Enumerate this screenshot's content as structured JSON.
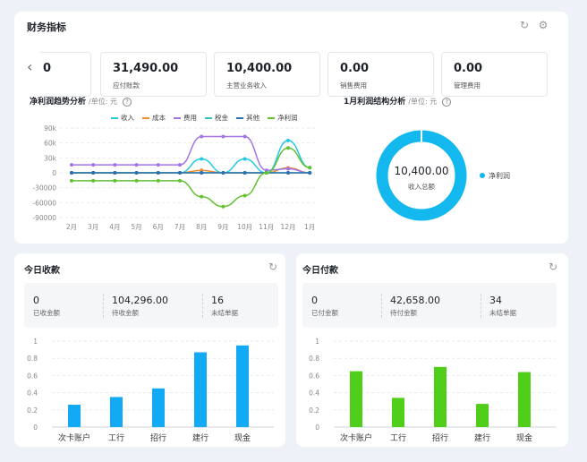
{
  "finance": {
    "title": "财务指标",
    "kpis": [
      {
        "value": "0",
        "label": ""
      },
      {
        "value": "31,490.00",
        "label": "应付账款"
      },
      {
        "value": "10,400.00",
        "label": "主营业务收入"
      },
      {
        "value": "0.00",
        "label": "销售费用"
      },
      {
        "value": "0.00",
        "label": "管理费用"
      }
    ],
    "trend": {
      "title": "净利润趋势分析",
      "unit": "/单位: 元"
    },
    "structure": {
      "title": "1月利润结构分析",
      "unit": "/单位: 元"
    },
    "donut": {
      "value": "10,400.00",
      "label": "收入总额",
      "legend": "净利润"
    }
  },
  "colors": {
    "income": "#24c8e8",
    "cost": "#f08c2e",
    "expense": "#a274e6",
    "tax": "#2ec4c4",
    "other": "#2d6fb0",
    "net": "#63c132",
    "blue_bar": "#12aaf5",
    "green_bar": "#4fcf1a"
  },
  "chart_data": [
    {
      "type": "line",
      "categories": [
        "2月",
        "3月",
        "4月",
        "5月",
        "6月",
        "7月",
        "8月",
        "9月",
        "10月",
        "11月",
        "12月",
        "1月"
      ],
      "yticks": [
        "90k",
        "60k",
        "30k",
        "0",
        "-30000",
        "-60000",
        "-90000"
      ],
      "ylim": [
        -90000,
        90000
      ],
      "series": [
        {
          "name": "收入",
          "values": [
            0,
            0,
            0,
            0,
            0,
            0,
            28000,
            0,
            28000,
            0,
            65000,
            10400
          ]
        },
        {
          "name": "成本",
          "values": [
            0,
            0,
            0,
            0,
            0,
            0,
            5000,
            0,
            0,
            0,
            10000,
            0
          ]
        },
        {
          "name": "费用",
          "values": [
            16000,
            16000,
            16000,
            16000,
            16000,
            16000,
            73000,
            73000,
            73000,
            5000,
            8000,
            0
          ]
        },
        {
          "name": "税金",
          "values": [
            0,
            0,
            0,
            0,
            0,
            0,
            0,
            0,
            0,
            0,
            0,
            0
          ]
        },
        {
          "name": "其他",
          "values": [
            0,
            0,
            0,
            0,
            0,
            0,
            0,
            0,
            0,
            0,
            0,
            0
          ]
        },
        {
          "name": "净利润",
          "values": [
            -16000,
            -16000,
            -16000,
            -16000,
            -16000,
            -16000,
            -48000,
            -68000,
            -46000,
            0,
            50000,
            10400
          ]
        }
      ],
      "grid": true,
      "legend": "top"
    },
    {
      "type": "pie",
      "categories": [
        "净利润"
      ],
      "values": [
        10400
      ]
    },
    {
      "type": "bar",
      "categories": [
        "次卡账户",
        "工行",
        "招行",
        "建行",
        "现金"
      ],
      "values": [
        0.26,
        0.35,
        0.45,
        0.87,
        0.95
      ],
      "yticks": [
        "1",
        "0.8",
        "0.6",
        "0.4",
        "0.2",
        "0"
      ],
      "ylim": [
        0,
        1
      ]
    },
    {
      "type": "bar",
      "categories": [
        "次卡账户",
        "工行",
        "招行",
        "建行",
        "现金"
      ],
      "values": [
        0.65,
        0.34,
        0.7,
        0.27,
        0.64
      ],
      "yticks": [
        "1",
        "0.8",
        "0.6",
        "0.4",
        "0.2",
        "0"
      ],
      "ylim": [
        0,
        1
      ]
    }
  ],
  "receipts": {
    "title": "今日收款",
    "stats": [
      {
        "value": "0",
        "label": "已收金额"
      },
      {
        "value": "104,296.00",
        "label": "待收金额"
      },
      {
        "value": "16",
        "label": "未结单据"
      }
    ]
  },
  "payments": {
    "title": "今日付款",
    "stats": [
      {
        "value": "0",
        "label": "已付金额"
      },
      {
        "value": "42,658.00",
        "label": "待付金额"
      },
      {
        "value": "34",
        "label": "未结单据"
      }
    ]
  },
  "icons": {
    "refresh": "↻",
    "settings": "⚙",
    "prev": "‹",
    "help": "?"
  }
}
